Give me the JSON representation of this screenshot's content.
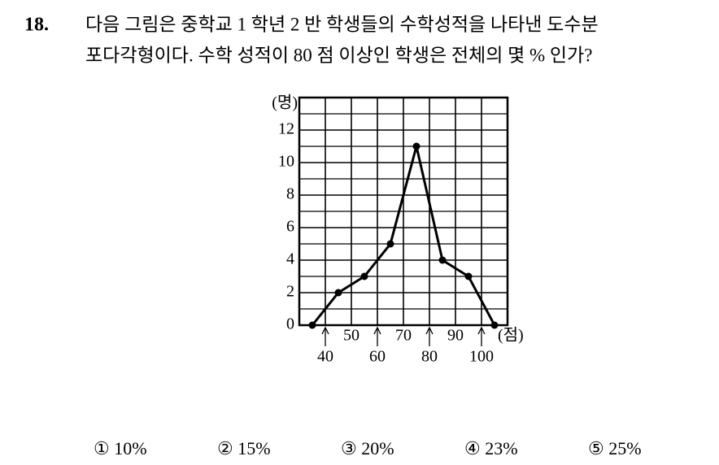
{
  "question": {
    "number": "18.",
    "lines": [
      "다음 그림은 중학교 1 학년 2 반 학생들의 수학성적을 나타낸 도수분",
      "포다각형이다. 수학 성적이 80 점 이상인 학생은 전체의 몇 % 인가?"
    ]
  },
  "chart_data": {
    "type": "line",
    "y_label": "(명)",
    "x_label": "(점)",
    "x": [
      35,
      45,
      55,
      65,
      75,
      85,
      95,
      105
    ],
    "values": [
      0,
      2,
      3,
      5,
      11,
      4,
      3,
      0
    ],
    "color": "#000000",
    "xlim": [
      30,
      110
    ],
    "xticks": [
      40,
      50,
      60,
      70,
      80,
      90,
      100
    ],
    "ylim": [
      0,
      14
    ],
    "yticks": [
      0,
      2,
      4,
      6,
      8,
      10,
      12
    ],
    "grid": true
  },
  "choices": [
    "① 10%",
    "② 15%",
    "③ 20%",
    "④ 23%",
    "⑤ 25%"
  ]
}
